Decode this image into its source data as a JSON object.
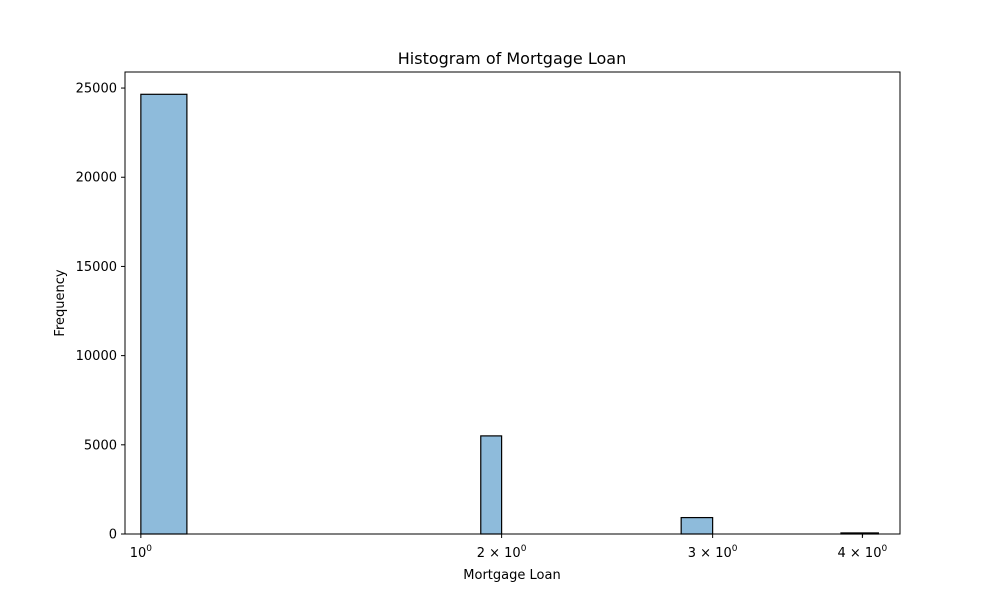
{
  "chart_data": {
    "type": "bar",
    "title": "Histogram of Mortgage Loan",
    "xlabel": "Mortgage Loan",
    "ylabel": "Frequency",
    "x_scale": "log",
    "xlim": [
      0.97,
      4.3
    ],
    "ylim": [
      0,
      25900
    ],
    "bar_color": "#8ebbdb",
    "edge_color": "#000000",
    "bins": [
      {
        "x0": 1.0,
        "x1": 1.0925,
        "value": 24650
      },
      {
        "x0": 1.9215,
        "x1": 2.0,
        "value": 5500
      },
      {
        "x0": 2.824,
        "x1": 3.0,
        "value": 920
      },
      {
        "x0": 3.839,
        "x1": 4.125,
        "value": 60
      }
    ],
    "yticks": [
      {
        "value": 0,
        "label": "0"
      },
      {
        "value": 5000,
        "label": "5000"
      },
      {
        "value": 10000,
        "label": "10000"
      },
      {
        "value": 15000,
        "label": "15000"
      },
      {
        "value": 20000,
        "label": "20000"
      },
      {
        "value": 25000,
        "label": "25000"
      }
    ],
    "xticks": [
      {
        "value": 1,
        "base": "10",
        "exp": "0"
      },
      {
        "value": 2,
        "base": "2 × 10",
        "exp": "0"
      },
      {
        "value": 3,
        "base": "3 × 10",
        "exp": "0"
      },
      {
        "value": 4,
        "base": "4 × 10",
        "exp": "0"
      }
    ],
    "grid": false
  }
}
